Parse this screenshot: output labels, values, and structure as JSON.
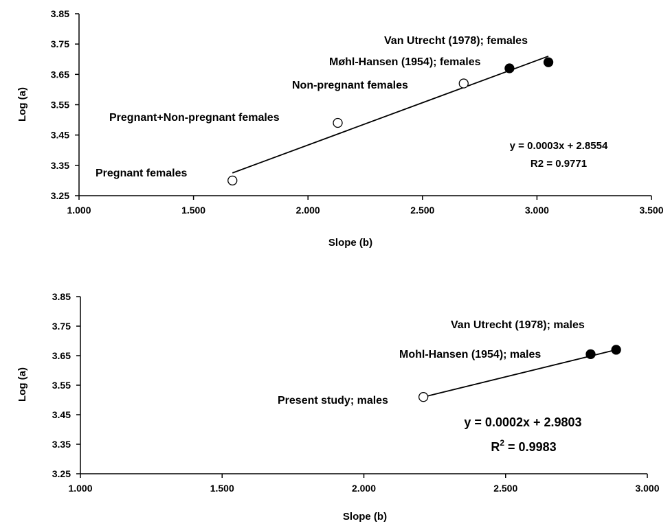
{
  "chart_data": [
    {
      "type": "scatter",
      "xlabel": "Slope (b)",
      "ylabel": "Log (a)",
      "xlim": [
        1.0,
        3.5
      ],
      "ylim": [
        3.25,
        3.85
      ],
      "x_ticks": [
        "1.000",
        "1.500",
        "2.000",
        "2.500",
        "3.000",
        "3.500"
      ],
      "y_ticks": [
        "3.25",
        "3.35",
        "3.45",
        "3.55",
        "3.65",
        "3.75",
        "3.85"
      ],
      "points": [
        {
          "x": 1.67,
          "y": 3.3,
          "filled": false,
          "label": "Pregnant females"
        },
        {
          "x": 2.13,
          "y": 3.49,
          "filled": false,
          "label": "Pregnant+Non-pregnant females"
        },
        {
          "x": 2.68,
          "y": 3.62,
          "filled": false,
          "label": "Non-pregnant females"
        },
        {
          "x": 2.88,
          "y": 3.67,
          "filled": true,
          "label": "Møhl-Hansen (1954); females"
        },
        {
          "x": 3.05,
          "y": 3.69,
          "filled": true,
          "label": "Van Utrecht (1978); females"
        }
      ],
      "trendline": {
        "x": [
          1.67,
          3.05
        ],
        "y": [
          3.325,
          3.71
        ]
      },
      "equation": "y = 0.0003x + 2.8554",
      "r2": "R2 = 0.9771"
    },
    {
      "type": "scatter",
      "xlabel": "Slope (b)",
      "ylabel": "Log (a)",
      "xlim": [
        1.0,
        3.0
      ],
      "ylim": [
        3.25,
        3.85
      ],
      "x_ticks": [
        "1.000",
        "1.500",
        "2.000",
        "2.500",
        "3.000"
      ],
      "y_ticks": [
        "3.25",
        "3.35",
        "3.45",
        "3.55",
        "3.65",
        "3.75",
        "3.85"
      ],
      "points": [
        {
          "x": 2.21,
          "y": 3.51,
          "filled": false,
          "label": "Present study; males"
        },
        {
          "x": 2.8,
          "y": 3.655,
          "filled": true,
          "label": "Mohl-Hansen (1954); males"
        },
        {
          "x": 2.89,
          "y": 3.67,
          "filled": true,
          "label": "Van Utrecht (1978); males"
        }
      ],
      "trendline": {
        "x": [
          2.21,
          2.89
        ],
        "y": [
          3.51,
          3.67
        ]
      },
      "equation": "y = 0.0002x + 2.9803",
      "r2_prefix": "R",
      "r2_sup": "2",
      "r2_value": " = 0.9983"
    }
  ]
}
